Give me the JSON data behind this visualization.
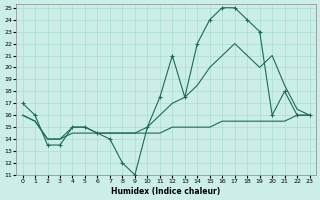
{
  "xlabel": "Humidex (Indice chaleur)",
  "bg_color": "#cceee8",
  "grid_color": "#aaddcc",
  "line_color": "#1a6b5a",
  "ylim": [
    11,
    25
  ],
  "xlim": [
    -0.5,
    23.5
  ],
  "yticks": [
    11,
    12,
    13,
    14,
    15,
    16,
    17,
    18,
    19,
    20,
    21,
    22,
    23,
    24,
    25
  ],
  "xticks": [
    0,
    1,
    2,
    3,
    4,
    5,
    6,
    7,
    8,
    9,
    10,
    11,
    12,
    13,
    14,
    15,
    16,
    17,
    18,
    19,
    20,
    21,
    22,
    23
  ],
  "line1_x": [
    0,
    1,
    2,
    3,
    4,
    5,
    6,
    7,
    8,
    9,
    10,
    11,
    12,
    13,
    14,
    15,
    16,
    17,
    18,
    19,
    20,
    21,
    22,
    23
  ],
  "line1_y": [
    17,
    16,
    13.5,
    13.5,
    15,
    15,
    14.5,
    14,
    12,
    11,
    15,
    17.5,
    21,
    17.5,
    22,
    24,
    25,
    25,
    24,
    23,
    16,
    18,
    16,
    16
  ],
  "line2_x": [
    0,
    1,
    2,
    3,
    4,
    5,
    6,
    7,
    8,
    9,
    10,
    11,
    12,
    13,
    14,
    15,
    16,
    17,
    18,
    19,
    20,
    21,
    22,
    23
  ],
  "line2_y": [
    16,
    15.5,
    14,
    14,
    15,
    15,
    14.5,
    14.5,
    14.5,
    14.5,
    15,
    16,
    17,
    17.5,
    18.5,
    20,
    21,
    22,
    21,
    20,
    21,
    18.5,
    16.5,
    16
  ],
  "line3_x": [
    0,
    1,
    2,
    3,
    4,
    5,
    6,
    7,
    8,
    9,
    10,
    11,
    12,
    13,
    14,
    15,
    16,
    17,
    18,
    19,
    20,
    21,
    22,
    23
  ],
  "line3_y": [
    16,
    15.5,
    14,
    14,
    14.5,
    14.5,
    14.5,
    14.5,
    14.5,
    14.5,
    14.5,
    14.5,
    15,
    15,
    15,
    15,
    15.5,
    15.5,
    15.5,
    15.5,
    15.5,
    15.5,
    16,
    16
  ]
}
